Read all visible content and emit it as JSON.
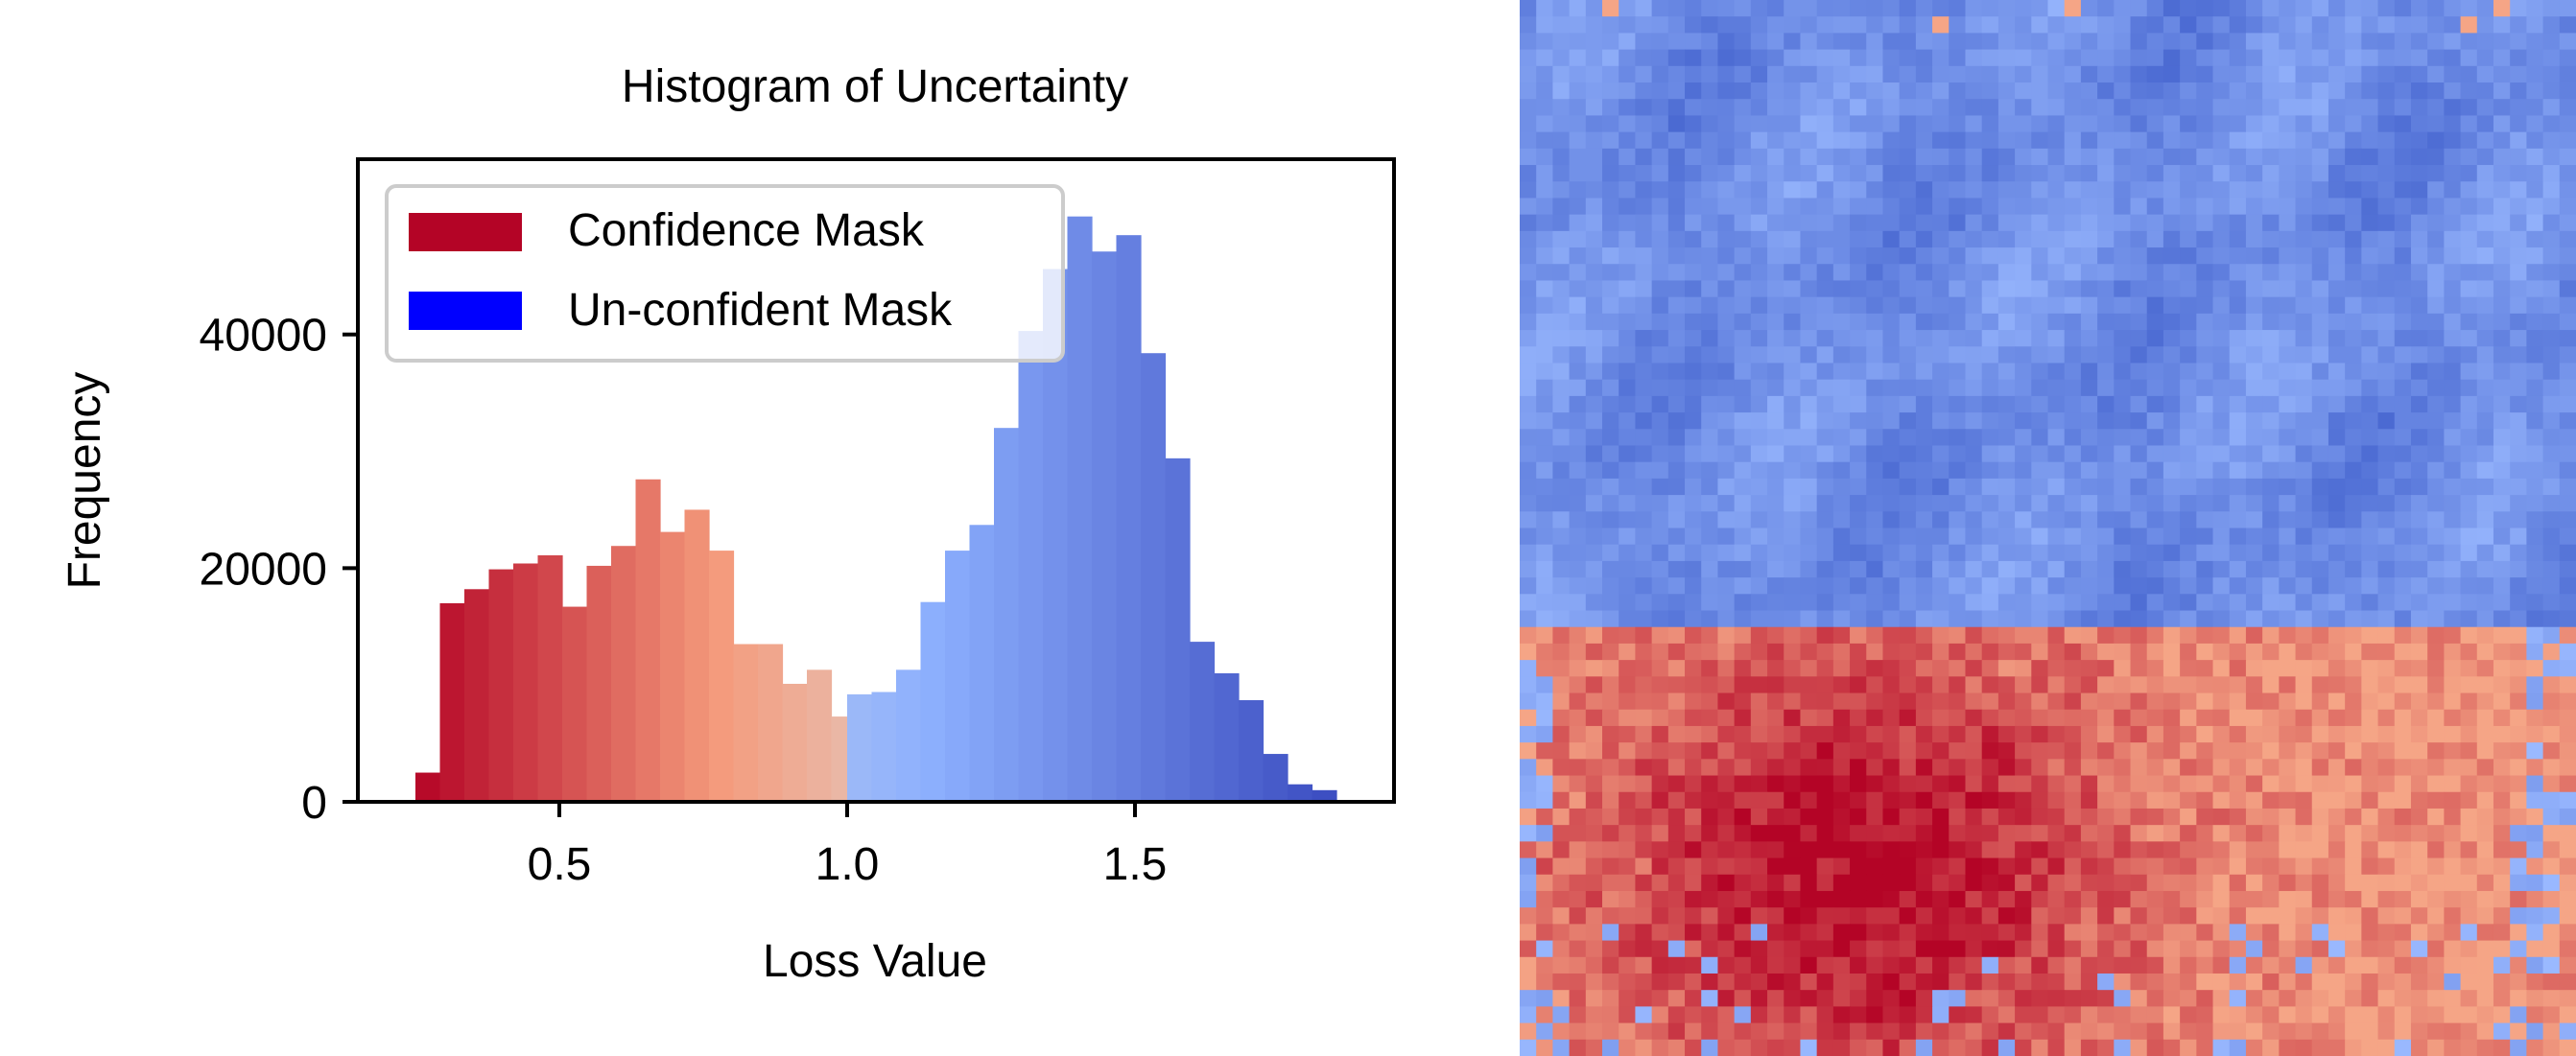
{
  "chart_data": [
    {
      "type": "bar",
      "subtype": "histogram",
      "title": "Histogram of Uncertainty",
      "xlabel": "Loss Value",
      "ylabel": "Frequency",
      "xlim": [
        0.15,
        1.95
      ],
      "ylim": [
        0,
        55000
      ],
      "xticks": [
        0.5,
        1.0,
        1.5
      ],
      "xtick_labels": [
        "0.5",
        "1.0",
        "1.5"
      ],
      "yticks": [
        0,
        20000,
        40000
      ],
      "ytick_labels": [
        "0",
        "20000",
        "40000"
      ],
      "grid": false,
      "legend_position": "top-left",
      "bin_width": 0.0425,
      "threshold": 1.0,
      "series": [
        {
          "name": "Confidence Mask",
          "legend_color": "#b40426",
          "bins": [
            {
              "x0": 0.25,
              "count": 2500
            },
            {
              "x0": 0.2925,
              "count": 17000
            },
            {
              "x0": 0.335,
              "count": 18200
            },
            {
              "x0": 0.3775,
              "count": 19900
            },
            {
              "x0": 0.42,
              "count": 20400
            },
            {
              "x0": 0.4625,
              "count": 21100
            },
            {
              "x0": 0.505,
              "count": 16700
            },
            {
              "x0": 0.5475,
              "count": 20200
            },
            {
              "x0": 0.59,
              "count": 21900
            },
            {
              "x0": 0.6325,
              "count": 27600
            },
            {
              "x0": 0.675,
              "count": 23100
            },
            {
              "x0": 0.7175,
              "count": 25000
            },
            {
              "x0": 0.76,
              "count": 21500
            },
            {
              "x0": 0.8025,
              "count": 13500
            },
            {
              "x0": 0.845,
              "count": 13500
            },
            {
              "x0": 0.8875,
              "count": 10100
            },
            {
              "x0": 0.93,
              "count": 11300
            },
            {
              "x0": 0.9725,
              "count": 7300
            }
          ]
        },
        {
          "name": "Un-confident Mask",
          "legend_color": "#0000ff",
          "bins": [
            {
              "x0": 1.0,
              "count": 9200
            },
            {
              "x0": 1.0425,
              "count": 9400
            },
            {
              "x0": 1.085,
              "count": 11300
            },
            {
              "x0": 1.1275,
              "count": 17100
            },
            {
              "x0": 1.17,
              "count": 21500
            },
            {
              "x0": 1.2125,
              "count": 23700
            },
            {
              "x0": 1.255,
              "count": 32000
            },
            {
              "x0": 1.2975,
              "count": 40300
            },
            {
              "x0": 1.34,
              "count": 45600
            },
            {
              "x0": 1.3825,
              "count": 50100
            },
            {
              "x0": 1.425,
              "count": 47100
            },
            {
              "x0": 1.4675,
              "count": 48500
            },
            {
              "x0": 1.51,
              "count": 38400
            },
            {
              "x0": 1.5525,
              "count": 29400
            },
            {
              "x0": 1.595,
              "count": 13700
            },
            {
              "x0": 1.6375,
              "count": 11000
            },
            {
              "x0": 1.68,
              "count": 8700
            },
            {
              "x0": 1.7225,
              "count": 4100
            },
            {
              "x0": 1.765,
              "count": 1500
            },
            {
              "x0": 1.8075,
              "count": 1000
            }
          ]
        }
      ]
    },
    {
      "type": "heatmap",
      "colormap": "coolwarm",
      "grid_cols": 64,
      "grid_rows": 64,
      "boundary_row": 38,
      "regions": [
        {
          "name": "upper",
          "rows": [
            0,
            37
          ],
          "color_range": [
            "#3f5ecb",
            "#9ab9ff"
          ]
        },
        {
          "name": "lower",
          "rows": [
            38,
            63
          ],
          "color_range": [
            "#b40426",
            "#f5a586"
          ]
        }
      ]
    }
  ]
}
